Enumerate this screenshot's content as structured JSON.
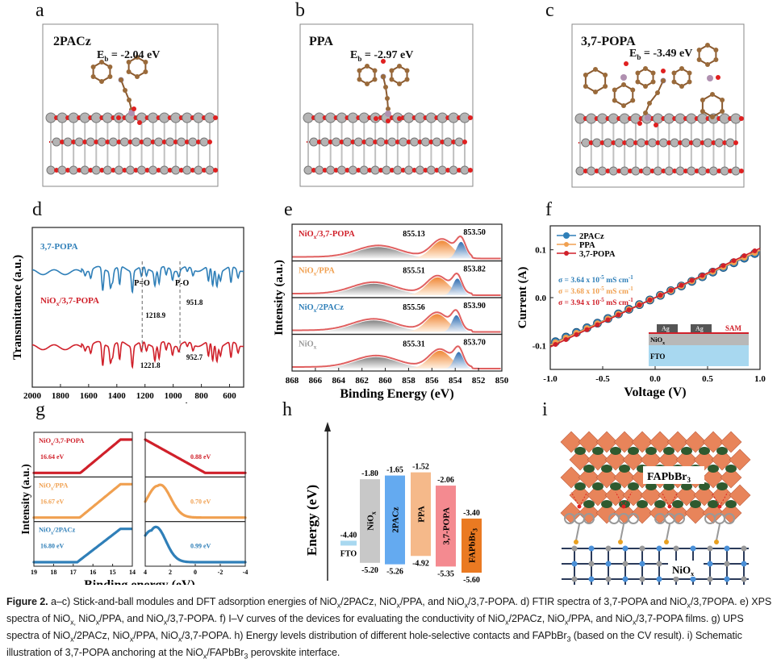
{
  "panels": {
    "a": {
      "letter": "a",
      "molecule": "2PACz",
      "eb_label": "E",
      "eb_sub": "b",
      "eb_value": " = -2.04 eV"
    },
    "b": {
      "letter": "b",
      "molecule": "PPA",
      "eb_label": "E",
      "eb_sub": "b",
      "eb_value": " = -2.97 eV"
    },
    "c": {
      "letter": "c",
      "molecule": "3,7-POPA",
      "eb_label": "E",
      "eb_sub": "b",
      "eb_value": " = -3.49 eV"
    },
    "g_letter": "g",
    "h_letter": "h",
    "i_letter": "i",
    "i_labels": {
      "top": "FAPbBr",
      "top_sub": "3",
      "bottom": "NiO",
      "bottom_sub": "x"
    }
  },
  "colors": {
    "blue": "#2f7fb8",
    "orange": "#f0a050",
    "red": "#d0202a",
    "gray": "#9a9a9a",
    "nio_bar": "#c8c8c8",
    "pacz_bar": "#64aaf0",
    "ppa_bar": "#f5b98a",
    "popa_bar": "#f48a90",
    "fapbbr_bar": "#ea7a22",
    "fto_bar": "#a8d8f0"
  },
  "chart_data": [
    {
      "id": "d",
      "letter": "d",
      "type": "line",
      "title": "",
      "xlabel": "Wavenumber (cm",
      "xlabel_sup": "-1",
      "xlabel_end": ")",
      "ylabel": "Transmittance (a.u.)",
      "xlim": [
        2000,
        500
      ],
      "xticks": [
        2000,
        1800,
        1600,
        1400,
        1200,
        1000,
        800,
        600
      ],
      "series": [
        {
          "name": "3,7-POPA",
          "color": "#2f7fb8",
          "offset": 0.72
        },
        {
          "name": "NiOx/3,7-POPA",
          "name_main": "NiO",
          "name_sub": "x",
          "name_rest": "/3,7-POPA",
          "color": "#d0202a",
          "offset": 0.25
        }
      ],
      "annotations": [
        {
          "text": "P=O",
          "x": 1220
        },
        {
          "text": "P-O",
          "x": 952
        },
        {
          "text": "1218.9",
          "x": 1218.9,
          "series": "3,7-POPA"
        },
        {
          "text": "951.8",
          "x": 951.8,
          "series": "3,7-POPA"
        },
        {
          "text": "1221.8",
          "x": 1221.8,
          "series": "NiOx/3,7-POPA"
        },
        {
          "text": "952.7",
          "x": 952.7,
          "series": "NiOx/3,7-POPA"
        }
      ]
    },
    {
      "id": "e",
      "letter": "e",
      "type": "area",
      "title": "",
      "xlabel": "Binding Energy (eV)",
      "ylabel": "Intensity (a.u.)",
      "xlim": [
        868,
        850
      ],
      "xticks": [
        868,
        866,
        864,
        862,
        860,
        858,
        856,
        854,
        852,
        850
      ],
      "series": [
        {
          "name_main": "NiO",
          "name_sub": "x",
          "name_rest": "/3,7-POPA",
          "color": "#d0202a",
          "peak1": 855.13,
          "peak2": 853.5,
          "sat": 860.6
        },
        {
          "name_main": "NiO",
          "name_sub": "x",
          "name_rest": "/PPA",
          "color": "#f0a050",
          "peak1": 855.51,
          "peak2": 853.82,
          "sat": 861.0
        },
        {
          "name_main": "NiO",
          "name_sub": "x",
          "name_rest": "/2PACz",
          "color": "#2f7fb8",
          "peak1": 855.56,
          "peak2": 853.9,
          "sat": 861.0
        },
        {
          "name_main": "NiO",
          "name_sub": "x",
          "name_rest": "",
          "color": "#9a9a9a",
          "peak1": 855.31,
          "peak2": 853.7,
          "sat": 860.8
        }
      ],
      "peak_labels": [
        [
          "855.13",
          "853.50"
        ],
        [
          "855.51",
          "853.82"
        ],
        [
          "855.56",
          "853.90"
        ],
        [
          "855.31",
          "853.70"
        ]
      ]
    },
    {
      "id": "f",
      "letter": "f",
      "type": "line",
      "title": "",
      "xlabel": "Voltage (V)",
      "ylabel": "Current (A)",
      "xlim": [
        -1.0,
        1.0
      ],
      "ylim": [
        -0.15,
        0.15
      ],
      "xticks": [
        "-1.0",
        "-0.5",
        "0.0",
        "0.5",
        "1.0"
      ],
      "yticks": [
        "-0.1",
        "0.0",
        "0.1"
      ],
      "x": [
        -0.95,
        -0.85,
        -0.75,
        -0.65,
        -0.55,
        -0.45,
        -0.35,
        -0.25,
        -0.15,
        -0.05,
        0.05,
        0.15,
        0.25,
        0.35,
        0.45,
        0.55,
        0.65,
        0.75,
        0.85,
        0.95
      ],
      "series": [
        {
          "name": "2PACz",
          "color": "#2f7fb8",
          "slope": 0.097
        },
        {
          "name": "PPA",
          "color": "#f0a050",
          "slope": 0.099
        },
        {
          "name": "3,7-POPA",
          "color": "#d0202a",
          "slope": 0.103
        }
      ],
      "conductivity": [
        {
          "text": "σ = 3.64 x 10",
          "sup": "-5",
          "unit": " mS cm",
          "unit_sup": "-1",
          "color": "#2f7fb8"
        },
        {
          "text": "σ = 3.68 x 10",
          "sup": "-5",
          "unit": " mS cm",
          "unit_sup": "-1",
          "color": "#f0a050"
        },
        {
          "text": "σ = 3.94 x 10",
          "sup": "-5",
          "unit": " mS cm",
          "unit_sup": "-1",
          "color": "#d0202a"
        }
      ],
      "inset": {
        "layers": [
          "FTO",
          "NiOx",
          "SAM"
        ],
        "electrodes": [
          "Ag",
          "Ag"
        ]
      }
    },
    {
      "id": "g",
      "type": "line",
      "title": "",
      "xlabel": "Binding energy (eV)",
      "ylabel": "Intensity (a.u.)",
      "left_xlim": [
        19,
        14
      ],
      "left_xticks": [
        "19",
        "18",
        "17",
        "16",
        "15",
        "14"
      ],
      "right_xlim": [
        4,
        -4
      ],
      "right_xticks": [
        "4",
        "2",
        "0",
        "-2",
        "-4"
      ],
      "series": [
        {
          "name_main": "NiO",
          "name_sub": "x",
          "name_rest": "/3,7-POPA",
          "color": "#d0202a",
          "cutoff": "16.64 eV",
          "vbm": "0.88 eV"
        },
        {
          "name_main": "NiO",
          "name_sub": "x",
          "name_rest": "/PPA",
          "color": "#f0a050",
          "cutoff": "16.67 eV",
          "vbm": "0.70 eV"
        },
        {
          "name_main": "NiO",
          "name_sub": "x",
          "name_rest": "/2PACz",
          "color": "#2f7fb8",
          "cutoff": "16.80 eV",
          "vbm": "0.99 eV"
        }
      ]
    },
    {
      "id": "h",
      "type": "bar",
      "title": "",
      "ylabel": "Energy (eV)",
      "categories": [
        "FTO",
        "NiOx",
        "2PACz",
        "PPA",
        "3,7-POPA",
        "FAPbBr3"
      ],
      "bars": [
        {
          "label": "FTO",
          "top": -4.4,
          "bottom": -4.4,
          "top_text": "-4.40",
          "bottom_text": "",
          "color": "#a8d8f0"
        },
        {
          "label": "NiO",
          "label_sub": "x",
          "top": -1.8,
          "bottom": -5.2,
          "top_text": "-1.80",
          "bottom_text": "-5.20",
          "color": "#c8c8c8"
        },
        {
          "label": "2PACz",
          "top": -1.65,
          "bottom": -5.26,
          "top_text": "-1.65",
          "bottom_text": "-5.26",
          "color": "#64aaf0"
        },
        {
          "label": "PPA",
          "top": -1.52,
          "bottom": -4.92,
          "top_text": "-1.52",
          "bottom_text": "-4.92",
          "color": "#f5b98a"
        },
        {
          "label": "3,7-POPA",
          "top": -2.06,
          "bottom": -5.35,
          "top_text": "-2.06",
          "bottom_text": "-5.35",
          "color": "#f48a90"
        },
        {
          "label": "FAPbBr",
          "label_sub": "3",
          "top": -3.4,
          "bottom": -5.6,
          "top_text": "-3.40",
          "bottom_text": "-5.60",
          "color": "#ea7a22"
        }
      ]
    }
  ],
  "caption": {
    "label": "Figure 2.",
    "segments": [
      {
        "t": " a–c) Stick-and-ball modules and DFT adsorption energies of NiO"
      },
      {
        "s": "x"
      },
      {
        "t": "/2PACz, NiO"
      },
      {
        "s": "x"
      },
      {
        "t": "/PPA, and NiO"
      },
      {
        "s": "x"
      },
      {
        "t": "/3,7-POPA. d) FTIR spectra of 3,7-POPA and NiO"
      },
      {
        "s": "x"
      },
      {
        "t": "/3,7POPA. e) XPS spectra of NiO"
      },
      {
        "s": "x,"
      },
      {
        "t": " NiO"
      },
      {
        "s": "x"
      },
      {
        "t": "/PPA, and NiO"
      },
      {
        "s": "x"
      },
      {
        "t": "/3,7-POPA. f) I–V curves of the devices for evaluating the conductivity of NiO"
      },
      {
        "s": "x"
      },
      {
        "t": "/2PACz, NiO"
      },
      {
        "s": "x"
      },
      {
        "t": "/PPA, and NiO"
      },
      {
        "s": "x"
      },
      {
        "t": "/3,7-POPA films. g) UPS spectra of NiO"
      },
      {
        "s": "x"
      },
      {
        "t": "/2PACz, NiO"
      },
      {
        "s": "x"
      },
      {
        "t": "/PPA, NiO"
      },
      {
        "s": "x"
      },
      {
        "t": "/3,7-POPA. h) Energy levels distribution of different hole-selective contacts and FAPbBr"
      },
      {
        "s": "3"
      },
      {
        "t": " (based on the CV result). i) Schematic illustration of 3,7-POPA anchoring at the NiO"
      },
      {
        "s": "x"
      },
      {
        "t": "/FAPbBr"
      },
      {
        "s": "3"
      },
      {
        "t": " perovskite interface."
      }
    ]
  }
}
